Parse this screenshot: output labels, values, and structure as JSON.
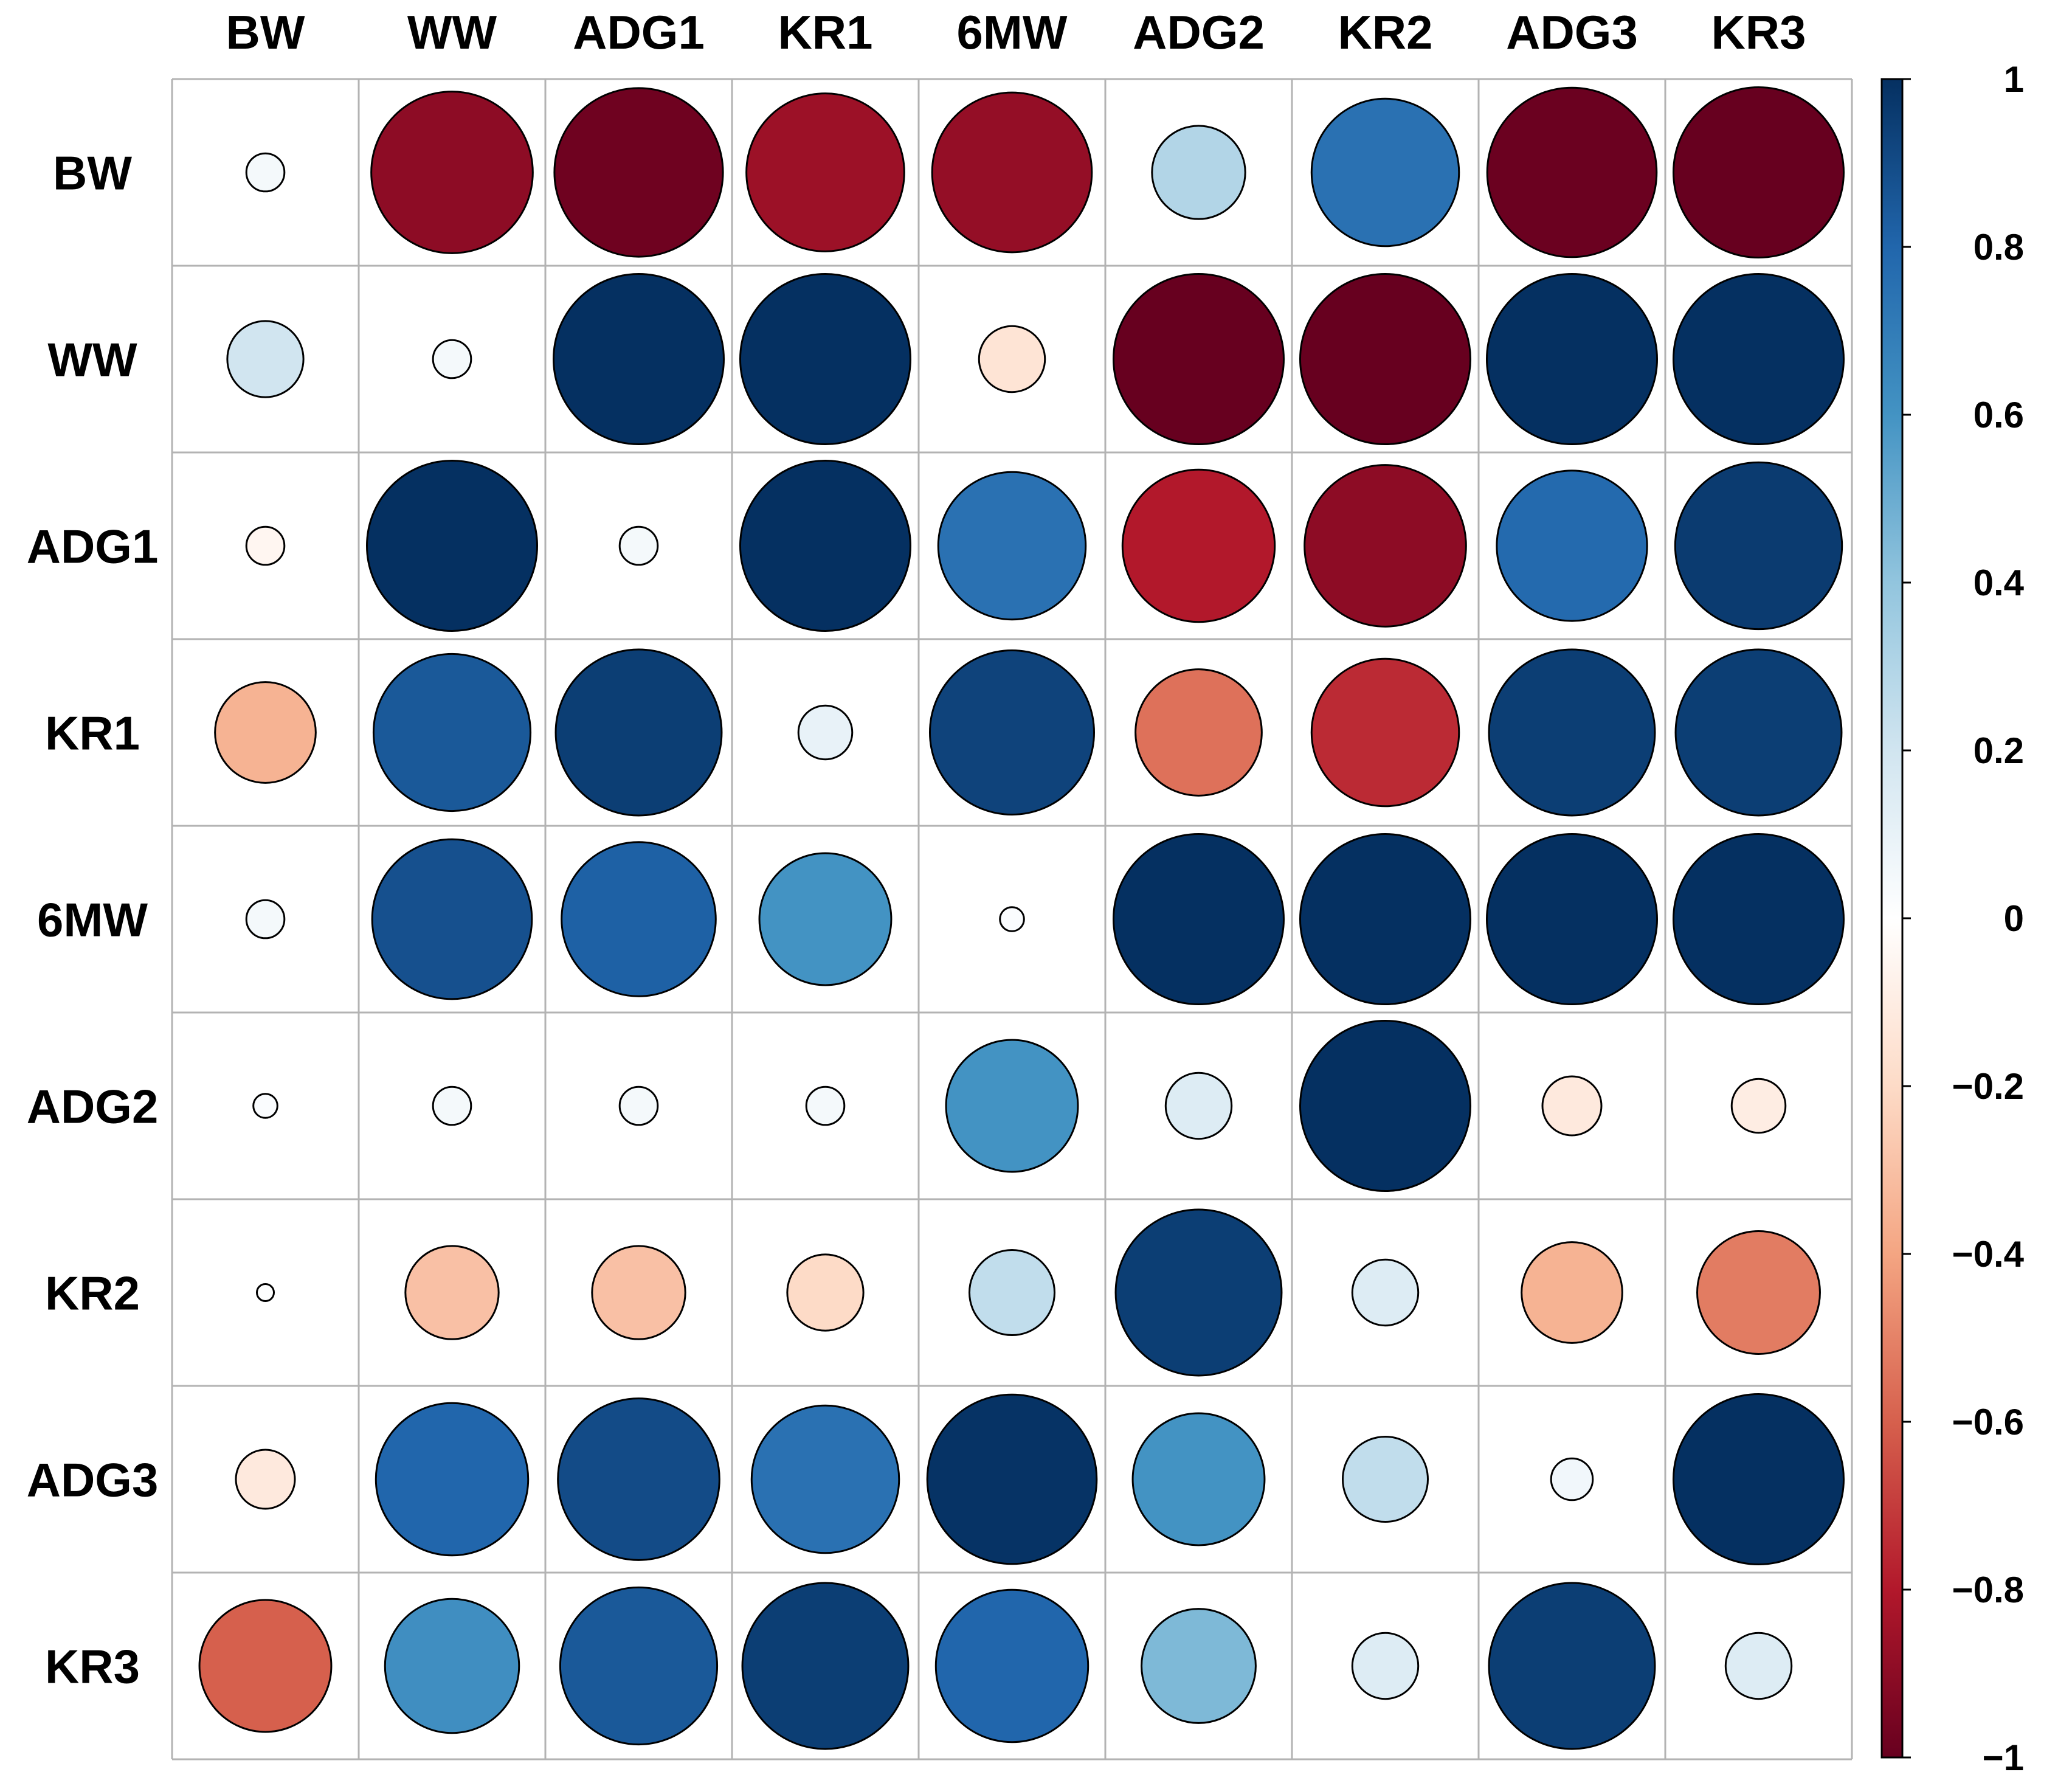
{
  "chart_data": {
    "type": "heatmap",
    "style": "correlation-circles",
    "title": "",
    "variables": [
      "BW",
      "WW",
      "ADG1",
      "KR1",
      "6MW",
      "ADG2",
      "KR2",
      "ADG3",
      "KR3"
    ],
    "matrix": [
      [
        0.05,
        -0.9,
        -0.98,
        -0.86,
        -0.88,
        0.3,
        0.75,
        -0.99,
        -1.0
      ],
      [
        0.2,
        0.05,
        1.0,
        1.0,
        -0.15,
        -1.0,
        -1.0,
        1.0,
        1.0
      ],
      [
        -0.05,
        1.0,
        0.05,
        1.0,
        0.75,
        -0.8,
        -0.9,
        0.78,
        0.96
      ],
      [
        -0.35,
        0.85,
        0.95,
        0.1,
        0.93,
        -0.55,
        -0.75,
        0.95,
        0.95
      ],
      [
        0.05,
        0.88,
        0.82,
        0.6,
        0.02,
        1.0,
        1.0,
        1.0,
        1.0
      ],
      [
        0.02,
        0.05,
        0.05,
        0.05,
        0.6,
        0.15,
        1.0,
        -0.12,
        -0.1
      ],
      [
        0.01,
        -0.3,
        -0.3,
        -0.2,
        0.25,
        0.95,
        0.15,
        -0.35,
        -0.52
      ],
      [
        -0.12,
        0.8,
        0.9,
        0.75,
        0.99,
        0.6,
        0.25,
        0.06,
        1.0
      ],
      [
        -0.6,
        0.62,
        0.85,
        0.95,
        0.8,
        0.45,
        0.15,
        0.95,
        0.15
      ]
    ],
    "colorbar": {
      "range": [
        -1,
        1
      ],
      "ticks": [
        "1",
        "0.8",
        "0.6",
        "0.4",
        "0.2",
        "0",
        "−0.2",
        "−0.4",
        "−0.6",
        "−0.8",
        "−1"
      ],
      "tick_values": [
        1,
        0.8,
        0.6,
        0.4,
        0.2,
        0,
        -0.2,
        -0.4,
        -0.6,
        -0.8,
        -1
      ],
      "placement": "right"
    },
    "palette": [
      "#67001F",
      "#B2182B",
      "#D6604D",
      "#F4A582",
      "#FDDBC7",
      "#FFFFFF",
      "#D1E5F0",
      "#92C5DE",
      "#4393C3",
      "#2166AC",
      "#053061"
    ]
  }
}
